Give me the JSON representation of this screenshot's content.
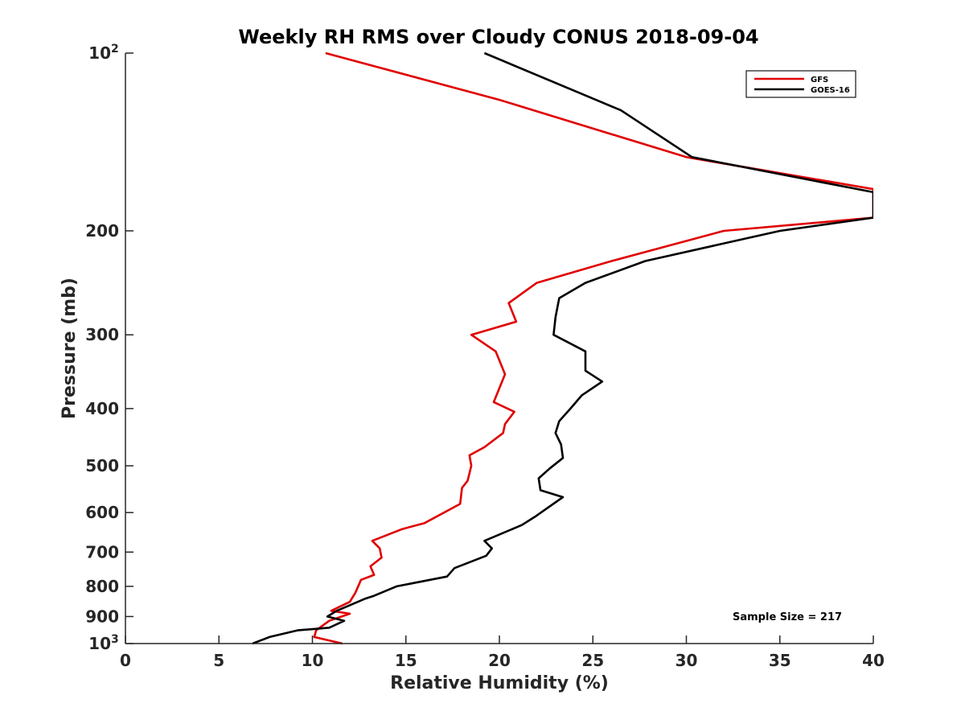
{
  "chart_data": {
    "type": "line",
    "title": "Weekly RH RMS over Cloudy CONUS 2018-09-04",
    "xlabel": "Relative Humidity (%)",
    "ylabel": "Pressure (mb)",
    "xlim": [
      0,
      40
    ],
    "ylim": [
      100,
      1000
    ],
    "y_scale": "log",
    "y_reversed": true,
    "grid": false,
    "legend_position": "top-right",
    "xticks": [
      0,
      5,
      10,
      15,
      20,
      25,
      30,
      35,
      40
    ],
    "yticks": [
      {
        "value": 100,
        "label": "10",
        "sup": "2"
      },
      {
        "value": 200,
        "label": "200",
        "sup": ""
      },
      {
        "value": 300,
        "label": "300",
        "sup": ""
      },
      {
        "value": 400,
        "label": "400",
        "sup": ""
      },
      {
        "value": 500,
        "label": "500",
        "sup": ""
      },
      {
        "value": 600,
        "label": "600",
        "sup": ""
      },
      {
        "value": 700,
        "label": "700",
        "sup": ""
      },
      {
        "value": 800,
        "label": "800",
        "sup": ""
      },
      {
        "value": 900,
        "label": "900",
        "sup": ""
      },
      {
        "value": 1000,
        "label": "10",
        "sup": "3"
      }
    ],
    "annotation": "Sample Size = 217",
    "series": [
      {
        "name": "GFS",
        "color": "#e00000",
        "points": [
          [
            10.7,
            100
          ],
          [
            20,
            120
          ],
          [
            30,
            150
          ],
          [
            40,
            170
          ],
          [
            40,
            190
          ],
          [
            32,
            200
          ],
          [
            26,
            225
          ],
          [
            22,
            245
          ],
          [
            20.5,
            265
          ],
          [
            20.9,
            285
          ],
          [
            18.5,
            300
          ],
          [
            19.8,
            320
          ],
          [
            20.3,
            350
          ],
          [
            19.7,
            390
          ],
          [
            20.8,
            405
          ],
          [
            20.3,
            425
          ],
          [
            20.2,
            440
          ],
          [
            19.2,
            465
          ],
          [
            18.4,
            480
          ],
          [
            18.5,
            500
          ],
          [
            18.3,
            530
          ],
          [
            18.0,
            545
          ],
          [
            17.9,
            580
          ],
          [
            16.0,
            625
          ],
          [
            14.8,
            640
          ],
          [
            13.2,
            670
          ],
          [
            13.6,
            690
          ],
          [
            13.7,
            715
          ],
          [
            13.1,
            740
          ],
          [
            13.3,
            765
          ],
          [
            12.6,
            780
          ],
          [
            12.3,
            820
          ],
          [
            12.0,
            850
          ],
          [
            11.0,
            880
          ],
          [
            12.0,
            890
          ],
          [
            10.9,
            915
          ],
          [
            10.2,
            950
          ],
          [
            10.1,
            975
          ],
          [
            11.6,
            1000
          ]
        ]
      },
      {
        "name": "GOES-16",
        "color": "#000000",
        "points": [
          [
            19.2,
            100
          ],
          [
            26.5,
            125
          ],
          [
            30.3,
            150
          ],
          [
            40,
            172
          ],
          [
            40,
            190
          ],
          [
            35,
            200
          ],
          [
            27.8,
            225
          ],
          [
            24.6,
            245
          ],
          [
            23.2,
            260
          ],
          [
            23.0,
            280
          ],
          [
            22.9,
            300
          ],
          [
            24.6,
            320
          ],
          [
            24.6,
            345
          ],
          [
            25.5,
            360
          ],
          [
            24.4,
            380
          ],
          [
            23.8,
            400
          ],
          [
            23.2,
            420
          ],
          [
            23.0,
            440
          ],
          [
            23.3,
            460
          ],
          [
            23.4,
            485
          ],
          [
            22.7,
            505
          ],
          [
            22.1,
            525
          ],
          [
            22.2,
            550
          ],
          [
            23.4,
            565
          ],
          [
            21.9,
            610
          ],
          [
            21.2,
            630
          ],
          [
            19.2,
            670
          ],
          [
            19.6,
            690
          ],
          [
            19.3,
            710
          ],
          [
            17.6,
            745
          ],
          [
            17.2,
            770
          ],
          [
            14.5,
            800
          ],
          [
            13.3,
            830
          ],
          [
            12.8,
            840
          ],
          [
            11.3,
            880
          ],
          [
            10.8,
            900
          ],
          [
            11.7,
            915
          ],
          [
            10.9,
            940
          ],
          [
            9.2,
            950
          ],
          [
            7.7,
            975
          ],
          [
            6.8,
            1000
          ]
        ]
      }
    ]
  }
}
